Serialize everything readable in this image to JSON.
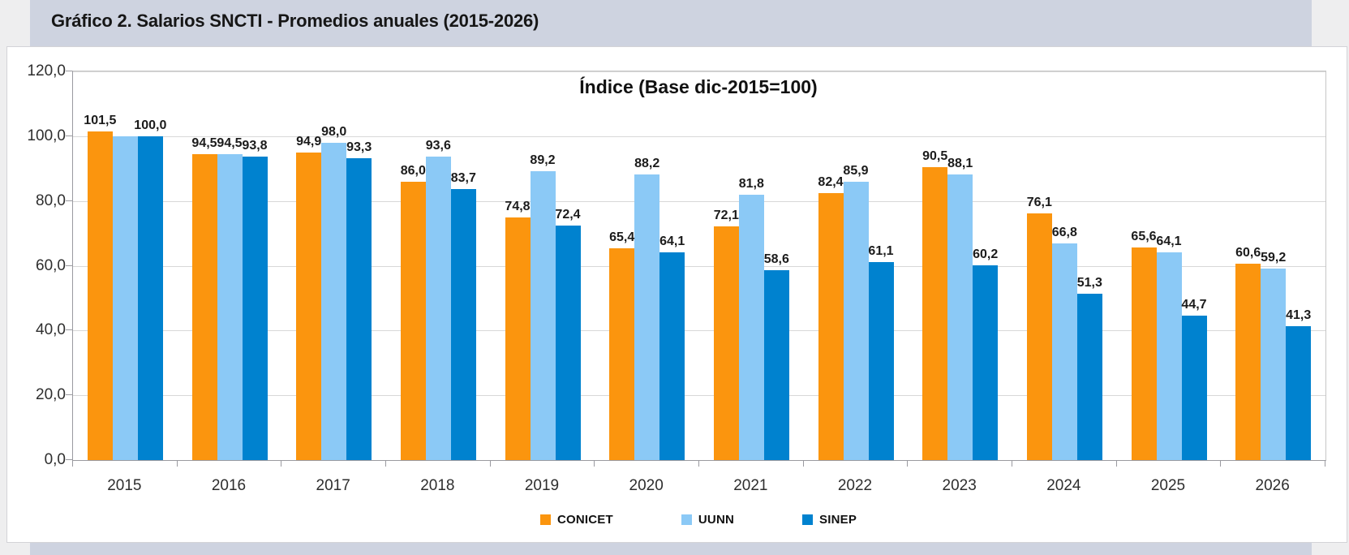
{
  "header": {
    "title": "Gráfico 2. Salarios SNCTI - Promedios anuales (2015-2026)"
  },
  "colors": {
    "page_background": "#EEEEEF",
    "band_background": "#CED3E0",
    "chart_background": "#FFFFFF",
    "gridline": "#D8D8D8",
    "axis": "#9A9AA0",
    "conicet": "#FB950E",
    "uunn": "#8BC9F6",
    "sinep": "#0082CF"
  },
  "chart_data": {
    "type": "bar",
    "title": "Índice (Base dic-2015=100)",
    "categories": [
      "2015",
      "2016",
      "2017",
      "2018",
      "2019",
      "2020",
      "2021",
      "2022",
      "2023",
      "2024",
      "2025",
      "2026"
    ],
    "series": [
      {
        "name": "CONICET",
        "color": "#FB950E",
        "values": [
          101.5,
          94.5,
          94.9,
          86.0,
          74.8,
          65.4,
          72.1,
          82.4,
          90.5,
          76.1,
          65.6,
          60.6
        ],
        "labels": [
          "101,5",
          "94,5",
          "94,9",
          "86,0",
          "74,8",
          "65,4",
          "72,1",
          "82,4",
          "90,5",
          "76,1",
          "65,6",
          "60,6"
        ]
      },
      {
        "name": "UUNN",
        "color": "#8BC9F6",
        "values": [
          100.0,
          94.5,
          98.0,
          93.6,
          89.2,
          88.2,
          81.8,
          85.9,
          88.1,
          66.8,
          64.1,
          59.2
        ],
        "labels": [
          "",
          "94,5",
          "98,0",
          "93,6",
          "89,2",
          "88,2",
          "81,8",
          "85,9",
          "88,1",
          "66,8",
          "64,1",
          "59,2"
        ]
      },
      {
        "name": "SINEP",
        "color": "#0082CF",
        "values": [
          100.0,
          93.8,
          93.3,
          83.7,
          72.4,
          64.1,
          58.6,
          61.1,
          60.2,
          51.3,
          44.7,
          41.3
        ],
        "labels": [
          "100,0",
          "93,8",
          "93,3",
          "83,7",
          "72,4",
          "64,1",
          "58,6",
          "61,1",
          "60,2",
          "51,3",
          "44,7",
          "41,3"
        ]
      }
    ],
    "ylim": [
      0,
      120
    ],
    "ytick_step": 20,
    "ytick_labels": [
      "0,0",
      "20,0",
      "40,0",
      "60,0",
      "80,0",
      "100,0",
      "120,0"
    ],
    "grid": true,
    "legend_position": "bottom"
  }
}
